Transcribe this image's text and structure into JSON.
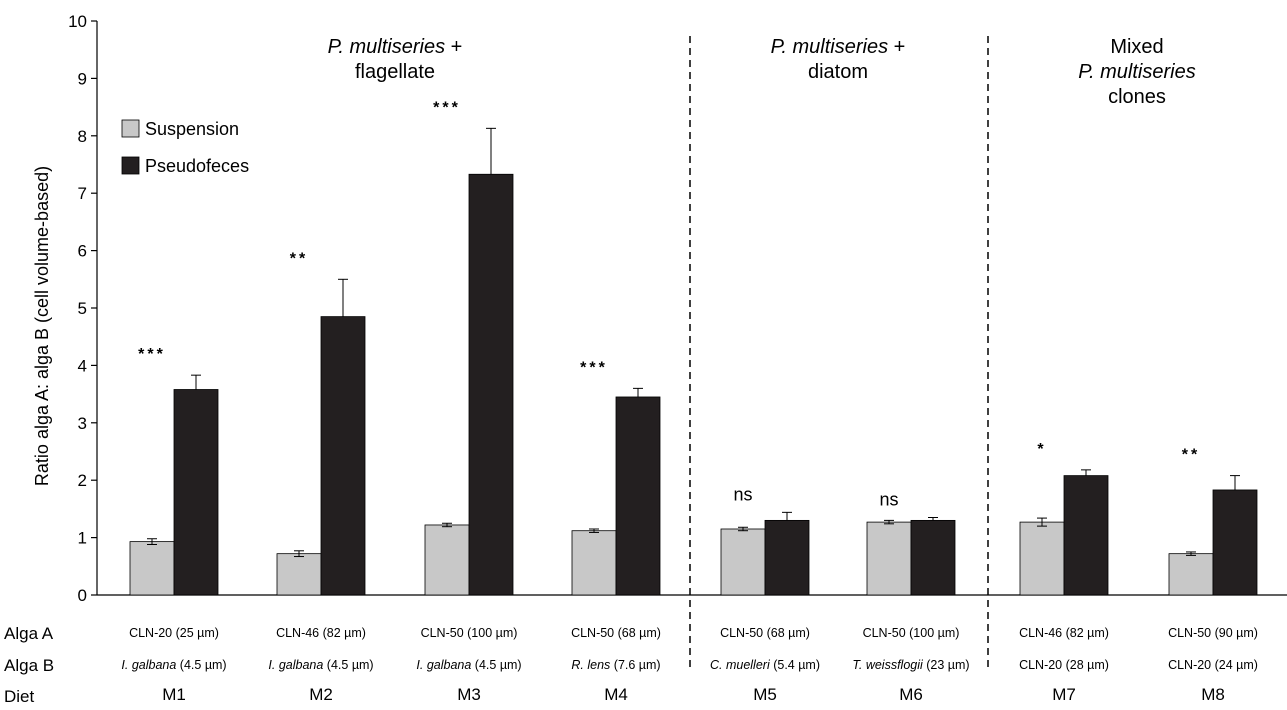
{
  "chart_data": {
    "type": "bar",
    "ylabel": "Ratio alga A: alga B (cell volume-based)",
    "ylim": [
      0,
      10
    ],
    "yticks": [
      "0",
      "1",
      "2",
      "3",
      "4",
      "5",
      "6",
      "7",
      "8",
      "9",
      "10"
    ],
    "categories": [
      "M1",
      "M2",
      "M3",
      "M4",
      "M5",
      "M6",
      "M7",
      "M8"
    ],
    "series": [
      {
        "name": "Suspension",
        "color": "#c8c8c8",
        "values": [
          0.93,
          0.72,
          1.22,
          1.12,
          1.15,
          1.27,
          1.27,
          0.72
        ],
        "errors": [
          0.05,
          0.05,
          0.03,
          0.03,
          0.03,
          0.03,
          0.07,
          0.03
        ]
      },
      {
        "name": "Pseudofeces",
        "color": "#231f20",
        "values": [
          3.58,
          4.85,
          7.33,
          3.45,
          1.3,
          1.3,
          2.08,
          1.83
        ],
        "errors": [
          0.25,
          0.65,
          0.8,
          0.15,
          0.14,
          0.05,
          0.1,
          0.25
        ]
      }
    ],
    "significance": [
      "***",
      "**",
      "***",
      "***",
      "ns",
      "ns",
      "*",
      "**"
    ],
    "group_labels": [
      {
        "lines": [
          [
            {
              "t": "P. multiseries",
              "i": true
            },
            {
              "t": " +",
              "i": false
            }
          ],
          [
            {
              "t": "flagellate",
              "i": false
            }
          ]
        ]
      },
      {
        "lines": [
          [
            {
              "t": "P. multiseries",
              "i": true
            },
            {
              "t": " +",
              "i": false
            }
          ],
          [
            {
              "t": "diatom",
              "i": false
            }
          ]
        ]
      },
      {
        "lines": [
          [
            {
              "t": "Mixed",
              "i": false
            }
          ],
          [
            {
              "t": "P. multiseries",
              "i": true
            }
          ],
          [
            {
              "t": "clones",
              "i": false
            }
          ]
        ]
      }
    ],
    "legend": {
      "position": "top-left",
      "entries": [
        "Suspension",
        "Pseudofeces"
      ]
    },
    "table": {
      "row_titles": [
        "Alga A",
        "Alga B",
        "Diet"
      ],
      "alga_a": [
        [
          {
            "t": "CLN-20 (25 µm)",
            "i": false
          }
        ],
        [
          {
            "t": "CLN-46 (82 µm)",
            "i": false
          }
        ],
        [
          {
            "t": "CLN-50 (100 µm)",
            "i": false
          }
        ],
        [
          {
            "t": "CLN-50 (68 µm)",
            "i": false
          }
        ],
        [
          {
            "t": "CLN-50 (68 µm)",
            "i": false
          }
        ],
        [
          {
            "t": "CLN-50 (100 µm)",
            "i": false
          }
        ],
        [
          {
            "t": "CLN-46 (82 µm)",
            "i": false
          }
        ],
        [
          {
            "t": "CLN-50 (90 µm)",
            "i": false
          }
        ]
      ],
      "alga_b": [
        [
          {
            "t": "I. galbana",
            "i": true
          },
          {
            "t": " (4.5 µm)",
            "i": false
          }
        ],
        [
          {
            "t": "I. galbana",
            "i": true
          },
          {
            "t": " (4.5 µm)",
            "i": false
          }
        ],
        [
          {
            "t": "I. galbana",
            "i": true
          },
          {
            "t": " (4.5 µm)",
            "i": false
          }
        ],
        [
          {
            "t": "R. lens",
            "i": true
          },
          {
            "t": " (7.6 µm)",
            "i": false
          }
        ],
        [
          {
            "t": "C. muelleri",
            "i": true
          },
          {
            "t": " (5.4 µm)",
            "i": false
          }
        ],
        [
          {
            "t": "T. weissflogii",
            "i": true
          },
          {
            "t": " (23 µm)",
            "i": false
          }
        ],
        [
          {
            "t": "CLN-20 (28 µm)",
            "i": false
          }
        ],
        [
          {
            "t": "CLN-20 (24 µm)",
            "i": false
          }
        ]
      ]
    }
  }
}
